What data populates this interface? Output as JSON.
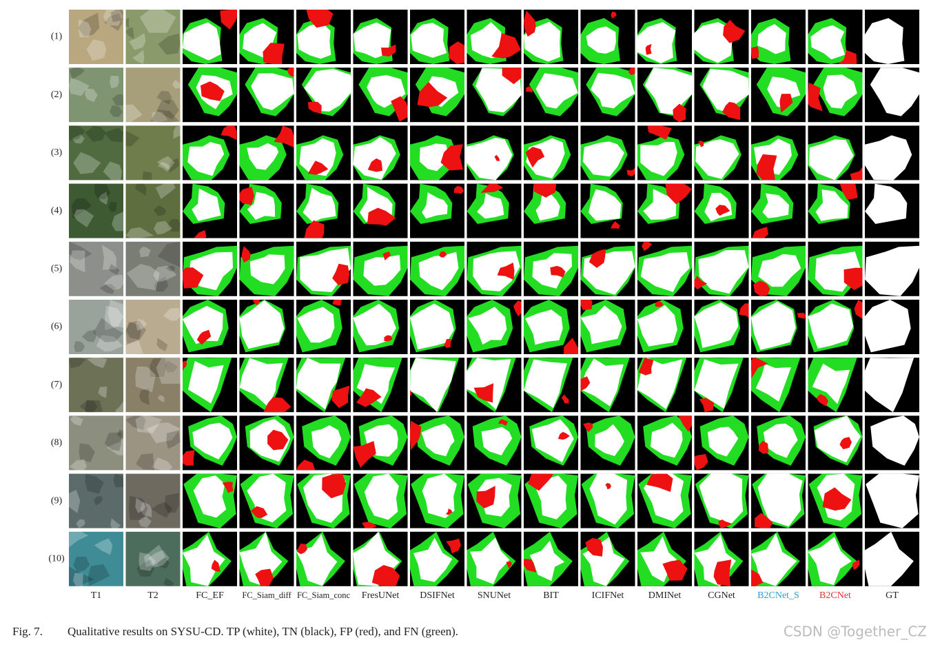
{
  "figure": {
    "row_labels": [
      "(1)",
      "(2)",
      "(3)",
      "(4)",
      "(5)",
      "(6)",
      "(7)",
      "(8)",
      "(9)",
      "(10)"
    ],
    "column_labels": [
      "T1",
      "T2",
      "FC_EF",
      "FC_Siam_diff",
      "FC_Siam_conc",
      "FresUNet",
      "DSIFNet",
      "SNUNet",
      "BIT",
      "ICIFNet",
      "DMINet",
      "CGNet",
      "B2CNet_S",
      "B2CNet",
      "GT"
    ],
    "caption": {
      "label": "Fig. 7.",
      "text": "Qualitative results on SYSU-CD. TP (white), TN (black), FP (red), and FN (green)."
    }
  },
  "watermark": "CSDN @Together_CZ"
}
